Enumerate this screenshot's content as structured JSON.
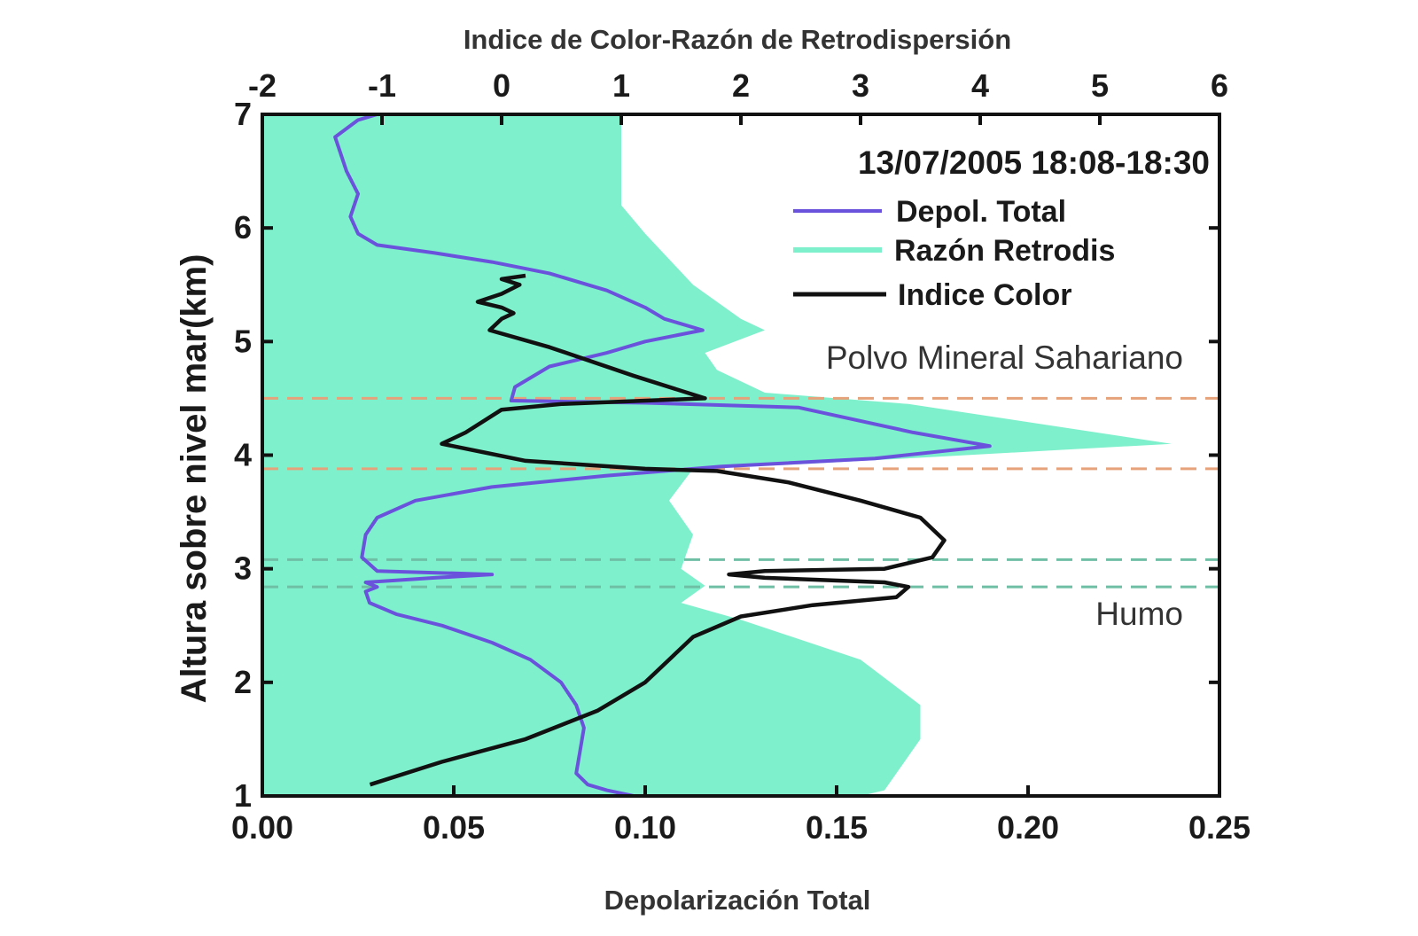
{
  "chart_data": {
    "type": "line",
    "top_axis_label": "Indice de Color-Razón de Retrodispersión",
    "bottom_axis_label": "Depolarización Total",
    "ylabel": "Altura sobre nivel mar(km)",
    "date_label": "13/07/2005 18:08-18:30",
    "annotations": [
      "Polvo Mineral Sahariano",
      "Humo"
    ],
    "ylim": [
      1,
      7
    ],
    "y_ticks": [
      "1",
      "2",
      "3",
      "4",
      "5",
      "6",
      "7"
    ],
    "bottom_xlim": [
      0,
      0.25
    ],
    "bottom_ticks": [
      "0.00",
      "0.05",
      "0.10",
      "0.15",
      "0.20",
      "0.25"
    ],
    "top_xlim": [
      -2,
      6
    ],
    "top_ticks": [
      "-2",
      "-1",
      "0",
      "1",
      "2",
      "3",
      "4",
      "5",
      "6"
    ],
    "layer_boundaries_km": [
      4.5,
      3.88,
      3.08,
      2.84
    ],
    "colors": {
      "depol": "#6b52dd",
      "razon": "#7ff0cc",
      "indice": "#111111",
      "dash_orange": "#e6a27a",
      "dash_green": "#6fbfa5"
    },
    "series": [
      {
        "name": "Depol. Total",
        "axis": "bottom",
        "points": [
          [
            0.097,
            1.0
          ],
          [
            0.09,
            1.05
          ],
          [
            0.085,
            1.1
          ],
          [
            0.082,
            1.2
          ],
          [
            0.083,
            1.4
          ],
          [
            0.084,
            1.6
          ],
          [
            0.082,
            1.8
          ],
          [
            0.078,
            2.0
          ],
          [
            0.07,
            2.2
          ],
          [
            0.06,
            2.35
          ],
          [
            0.047,
            2.5
          ],
          [
            0.035,
            2.6
          ],
          [
            0.028,
            2.7
          ],
          [
            0.027,
            2.8
          ],
          [
            0.03,
            2.84
          ],
          [
            0.027,
            2.88
          ],
          [
            0.045,
            2.92
          ],
          [
            0.06,
            2.95
          ],
          [
            0.03,
            2.98
          ],
          [
            0.026,
            3.1
          ],
          [
            0.027,
            3.3
          ],
          [
            0.03,
            3.45
          ],
          [
            0.04,
            3.6
          ],
          [
            0.06,
            3.72
          ],
          [
            0.09,
            3.82
          ],
          [
            0.12,
            3.9
          ],
          [
            0.16,
            3.97
          ],
          [
            0.19,
            4.08
          ],
          [
            0.17,
            4.2
          ],
          [
            0.14,
            4.42
          ],
          [
            0.1,
            4.46
          ],
          [
            0.065,
            4.48
          ],
          [
            0.066,
            4.6
          ],
          [
            0.075,
            4.78
          ],
          [
            0.09,
            4.9
          ],
          [
            0.1,
            5.0
          ],
          [
            0.115,
            5.1
          ],
          [
            0.105,
            5.2
          ],
          [
            0.1,
            5.3
          ],
          [
            0.09,
            5.45
          ],
          [
            0.075,
            5.6
          ],
          [
            0.06,
            5.7
          ],
          [
            0.045,
            5.78
          ],
          [
            0.03,
            5.85
          ],
          [
            0.025,
            5.95
          ],
          [
            0.023,
            6.1
          ],
          [
            0.025,
            6.3
          ],
          [
            0.022,
            6.5
          ],
          [
            0.02,
            6.7
          ],
          [
            0.019,
            6.8
          ],
          [
            0.025,
            6.95
          ],
          [
            0.03,
            7.0
          ]
        ]
      },
      {
        "name": "Razón Retrodis",
        "axis": "top",
        "points": [
          [
            1.0,
            7.0
          ],
          [
            1.0,
            6.2
          ],
          [
            1.2,
            5.95
          ],
          [
            1.6,
            5.5
          ],
          [
            2.0,
            5.2
          ],
          [
            2.2,
            5.1
          ],
          [
            1.7,
            4.9
          ],
          [
            1.8,
            4.75
          ],
          [
            2.2,
            4.55
          ],
          [
            3.4,
            4.45
          ],
          [
            5.6,
            4.1
          ],
          [
            2.5,
            3.92
          ],
          [
            1.6,
            3.88
          ],
          [
            1.4,
            3.6
          ],
          [
            1.6,
            3.3
          ],
          [
            1.5,
            3.0
          ],
          [
            1.7,
            2.85
          ],
          [
            1.5,
            2.7
          ],
          [
            2.0,
            2.55
          ],
          [
            3.0,
            2.2
          ],
          [
            3.5,
            1.8
          ],
          [
            3.5,
            1.5
          ],
          [
            3.3,
            1.2
          ],
          [
            3.2,
            1.05
          ],
          [
            3.0,
            1.0
          ]
        ]
      },
      {
        "name": "Indice Color",
        "axis": "top",
        "points": [
          [
            -1.1,
            1.1
          ],
          [
            -0.5,
            1.3
          ],
          [
            0.2,
            1.5
          ],
          [
            0.8,
            1.75
          ],
          [
            1.2,
            2.0
          ],
          [
            1.4,
            2.2
          ],
          [
            1.6,
            2.4
          ],
          [
            2.0,
            2.58
          ],
          [
            2.6,
            2.68
          ],
          [
            3.3,
            2.75
          ],
          [
            3.4,
            2.84
          ],
          [
            3.2,
            2.88
          ],
          [
            2.2,
            2.92
          ],
          [
            1.9,
            2.95
          ],
          [
            2.2,
            2.98
          ],
          [
            3.2,
            3.0
          ],
          [
            3.6,
            3.1
          ],
          [
            3.7,
            3.25
          ],
          [
            3.5,
            3.45
          ],
          [
            3.0,
            3.6
          ],
          [
            2.4,
            3.76
          ],
          [
            1.8,
            3.86
          ],
          [
            1.2,
            3.88
          ],
          [
            0.2,
            3.95
          ],
          [
            -0.5,
            4.1
          ],
          [
            -0.3,
            4.2
          ],
          [
            0.0,
            4.4
          ],
          [
            0.5,
            4.45
          ],
          [
            1.7,
            4.5
          ],
          [
            1.1,
            4.7
          ],
          [
            0.4,
            4.95
          ],
          [
            -0.1,
            5.1
          ],
          [
            0.0,
            5.2
          ],
          [
            0.1,
            5.25
          ],
          [
            0.0,
            5.3
          ],
          [
            -0.2,
            5.35
          ],
          [
            0.0,
            5.42
          ],
          [
            0.15,
            5.5
          ],
          [
            0.0,
            5.55
          ],
          [
            0.2,
            5.58
          ]
        ]
      }
    ],
    "legend": [
      {
        "label": "Depol. Total",
        "color": "#6b52dd"
      },
      {
        "label": "Razón Retrodis",
        "color": "#7ff0cc"
      },
      {
        "label": "Indice Color",
        "color": "#111111"
      }
    ],
    "legend_placement": "top-right",
    "grid": false
  }
}
